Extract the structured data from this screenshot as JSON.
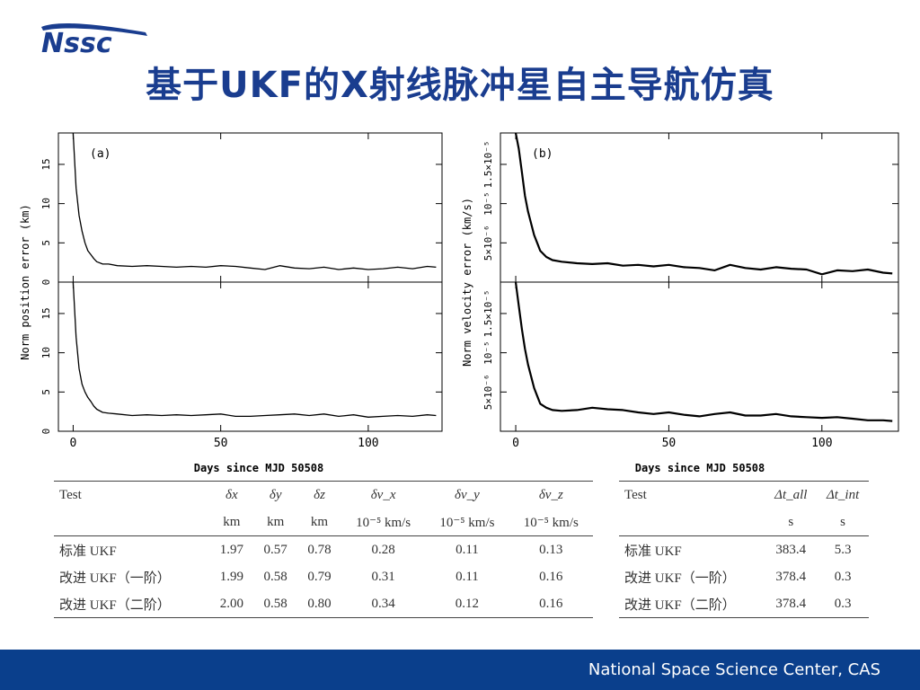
{
  "logo_text": "Nssc",
  "title": "基于UKF的X射线脉冲星自主导航仿真",
  "footer": "National Space Science Center, CAS",
  "chart_data": [
    {
      "type": "line",
      "panel": "(a)",
      "ylabel": "Norm position error (km)",
      "xlabel": "Days since MJD 50508",
      "xlim": [
        -5,
        125
      ],
      "ylim": [
        0,
        19
      ],
      "xticks": [
        "0",
        "50",
        "100"
      ],
      "yticks": [
        "0",
        "5",
        "10",
        "15"
      ],
      "series": [
        {
          "x": [
            0,
            1,
            2,
            3,
            4,
            5,
            6,
            7,
            8,
            10,
            12,
            15,
            20,
            25,
            30,
            35,
            40,
            45,
            50,
            55,
            60,
            65,
            70,
            75,
            80,
            85,
            90,
            95,
            100,
            105,
            110,
            115,
            120,
            123
          ],
          "values": [
            19,
            12,
            8.5,
            6.5,
            5,
            4,
            3.5,
            3,
            2.6,
            2.3,
            2.3,
            2.1,
            2.0,
            2.1,
            2.0,
            1.9,
            2.0,
            1.9,
            2.1,
            2.0,
            1.8,
            1.6,
            2.1,
            1.8,
            1.7,
            1.9,
            1.6,
            1.8,
            1.6,
            1.7,
            1.9,
            1.7,
            2.0,
            1.9
          ]
        }
      ]
    },
    {
      "type": "line",
      "ylabel": "Norm position error (km)",
      "xlabel": "Days since MJD 50508",
      "xlim": [
        -5,
        125
      ],
      "ylim": [
        0,
        19
      ],
      "xticks": [
        "0",
        "50",
        "100"
      ],
      "yticks": [
        "0",
        "5",
        "10",
        "15"
      ],
      "series": [
        {
          "x": [
            0,
            1,
            2,
            3,
            4,
            5,
            6,
            7,
            8,
            10,
            12,
            15,
            20,
            25,
            30,
            35,
            40,
            45,
            50,
            55,
            60,
            65,
            70,
            75,
            80,
            85,
            90,
            95,
            100,
            105,
            110,
            115,
            120,
            123
          ],
          "values": [
            19,
            12,
            8,
            6,
            5,
            4.3,
            3.8,
            3.2,
            2.8,
            2.4,
            2.3,
            2.2,
            2.0,
            2.1,
            2.0,
            2.1,
            2.0,
            2.1,
            2.2,
            1.9,
            1.9,
            2.0,
            2.1,
            2.2,
            2.0,
            2.2,
            1.9,
            2.1,
            1.8,
            1.9,
            2.0,
            1.9,
            2.1,
            2.0
          ]
        }
      ]
    },
    {
      "type": "line",
      "panel": "(b)",
      "ylabel": "Norm velocity error (km/s)",
      "xlabel": "Days since MJD 50508",
      "xlim": [
        -5,
        125
      ],
      "ylim": [
        0,
        1.9
      ],
      "xticks": [
        "0",
        "50",
        "100"
      ],
      "yticks": [
        "5×10⁻⁶",
        "10⁻⁵",
        "1.5×10⁻⁵"
      ],
      "ytick_values": [
        0.5,
        1.0,
        1.5
      ],
      "series": [
        {
          "x": [
            0,
            1,
            2,
            3,
            4,
            5,
            6,
            7,
            8,
            10,
            12,
            15,
            20,
            25,
            30,
            35,
            40,
            45,
            50,
            55,
            60,
            65,
            70,
            75,
            80,
            85,
            90,
            95,
            100,
            105,
            110,
            115,
            120,
            123
          ],
          "values": [
            1.9,
            1.7,
            1.4,
            1.1,
            0.9,
            0.75,
            0.6,
            0.5,
            0.4,
            0.32,
            0.28,
            0.26,
            0.24,
            0.23,
            0.24,
            0.21,
            0.22,
            0.2,
            0.22,
            0.19,
            0.18,
            0.15,
            0.22,
            0.18,
            0.16,
            0.19,
            0.17,
            0.16,
            0.1,
            0.15,
            0.14,
            0.16,
            0.12,
            0.11
          ]
        }
      ]
    },
    {
      "type": "line",
      "ylabel": "Norm velocity error (km/s)",
      "xlabel": "Days since MJD 50508",
      "xlim": [
        -5,
        125
      ],
      "ylim": [
        0,
        1.9
      ],
      "xticks": [
        "0",
        "50",
        "100"
      ],
      "yticks": [
        "5×10⁻⁶",
        "10⁻⁵",
        "1.5×10⁻⁵"
      ],
      "ytick_values": [
        0.5,
        1.0,
        1.5
      ],
      "series": [
        {
          "x": [
            0,
            1,
            2,
            3,
            4,
            5,
            6,
            7,
            8,
            10,
            12,
            15,
            20,
            25,
            30,
            35,
            40,
            45,
            50,
            55,
            60,
            65,
            70,
            75,
            80,
            85,
            90,
            95,
            100,
            105,
            110,
            115,
            120,
            123
          ],
          "values": [
            1.9,
            1.6,
            1.3,
            1.05,
            0.85,
            0.7,
            0.55,
            0.45,
            0.35,
            0.3,
            0.27,
            0.26,
            0.27,
            0.3,
            0.28,
            0.27,
            0.24,
            0.22,
            0.24,
            0.21,
            0.19,
            0.22,
            0.24,
            0.2,
            0.2,
            0.22,
            0.19,
            0.18,
            0.17,
            0.18,
            0.16,
            0.14,
            0.14,
            0.13
          ]
        }
      ]
    }
  ],
  "table1": {
    "headers": [
      "Test",
      "δx",
      "δy",
      "δz",
      "δv_x",
      "δv_y",
      "δv_z"
    ],
    "units": [
      "",
      "km",
      "km",
      "km",
      "10⁻⁵ km/s",
      "10⁻⁵ km/s",
      "10⁻⁵ km/s"
    ],
    "rows": [
      [
        "标准 UKF",
        "1.97",
        "0.57",
        "0.78",
        "0.28",
        "0.11",
        "0.13"
      ],
      [
        "改进 UKF（一阶）",
        "1.99",
        "0.58",
        "0.79",
        "0.31",
        "0.11",
        "0.16"
      ],
      [
        "改进 UKF（二阶）",
        "2.00",
        "0.58",
        "0.80",
        "0.34",
        "0.12",
        "0.16"
      ]
    ]
  },
  "table2": {
    "headers": [
      "Test",
      "Δt_all",
      "Δt_int"
    ],
    "units": [
      "",
      "s",
      "s"
    ],
    "rows": [
      [
        "标准 UKF",
        "383.4",
        "5.3"
      ],
      [
        "改进 UKF（一阶）",
        "378.4",
        "0.3"
      ],
      [
        "改进 UKF（二阶）",
        "378.4",
        "0.3"
      ]
    ]
  }
}
